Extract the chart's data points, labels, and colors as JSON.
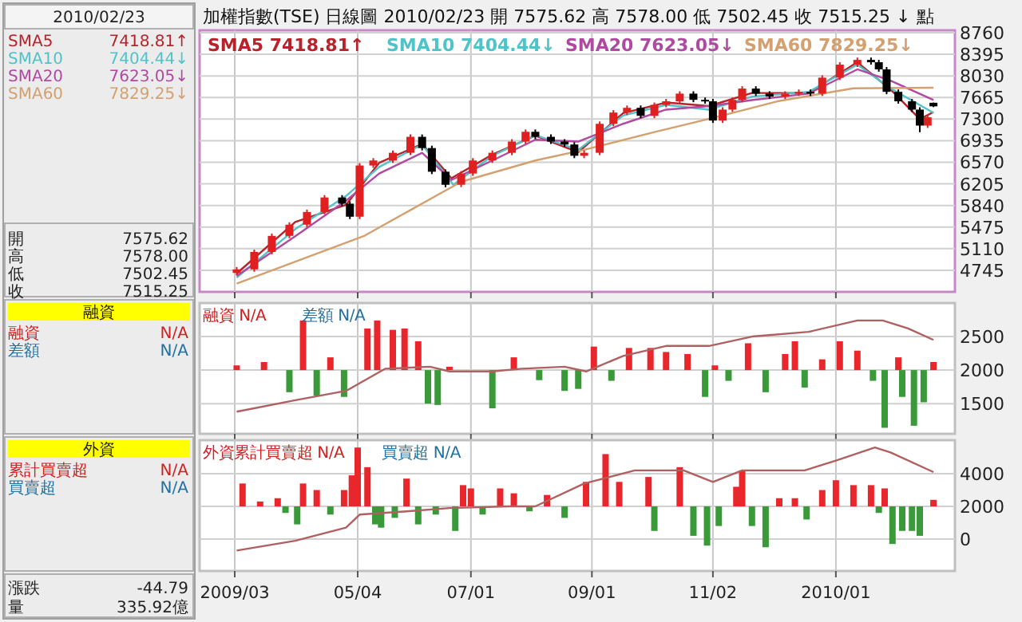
{
  "chart_data": [
    {
      "type": "candlestick",
      "title": "加權指數(TSE) 日線圖 2010/02/23 開 7575.62 高 7578.00 低 7502.45 收 7515.25 ↓ 點",
      "tick_labels": "y",
      "grid": true,
      "legend": "top left",
      "xlim": [
        "2009-02-12",
        "2010-03-06"
      ],
      "xticks": [
        {
          "value": "2009-03-02",
          "label": null
        },
        {
          "value": "2009-05-04",
          "label": null
        },
        {
          "value": "2009-07-01",
          "label": null
        },
        {
          "value": "2009-09-01",
          "label": null
        },
        {
          "value": "2009-11-02",
          "label": null
        },
        {
          "value": "2010-01-04",
          "label": null
        }
      ],
      "ylim": [
        4380,
        8800
      ],
      "yticks": [
        4745,
        5110,
        5475,
        5840,
        6205,
        6570,
        6935,
        7300,
        7665,
        8030,
        8395,
        8760
      ],
      "x": [
        "2009-03-03",
        "2009-03-12",
        "2009-03-21",
        "2009-03-30",
        "2009-04-08",
        "2009-04-17",
        "2009-04-26",
        "2009-04-30",
        "2009-05-05",
        "2009-05-12",
        "2009-05-22",
        "2009-05-31",
        "2009-06-06",
        "2009-06-11",
        "2009-06-18",
        "2009-06-26",
        "2009-07-02",
        "2009-07-12",
        "2009-07-22",
        "2009-07-29",
        "2009-08-03",
        "2009-08-11",
        "2009-08-18",
        "2009-08-23",
        "2009-08-28",
        "2009-09-05",
        "2009-09-12",
        "2009-09-19",
        "2009-09-26",
        "2009-10-03",
        "2009-10-09",
        "2009-10-16",
        "2009-10-23",
        "2009-10-29",
        "2009-11-02",
        "2009-11-07",
        "2009-11-12",
        "2009-11-17",
        "2009-11-24",
        "2009-12-01",
        "2009-12-09",
        "2009-12-16",
        "2009-12-22",
        "2009-12-28",
        "2010-01-06",
        "2010-01-15",
        "2010-01-22",
        "2010-01-26",
        "2010-01-30",
        "2010-02-05",
        "2010-02-12",
        "2010-02-16",
        "2010-02-20",
        "2010-02-23"
      ],
      "ohlc": [
        [
          4700,
          4800,
          4660,
          4760
        ],
        [
          4760,
          5095,
          4720,
          5055
        ],
        [
          5055,
          5366,
          5015,
          5326
        ],
        [
          5326,
          5555,
          5286,
          5515
        ],
        [
          5515,
          5770,
          5475,
          5730
        ],
        [
          5730,
          6015,
          5690,
          5975
        ],
        [
          5975,
          6015,
          5830,
          5870
        ],
        [
          5870,
          5910,
          5610,
          5650
        ],
        [
          5650,
          6555,
          5610,
          6515
        ],
        [
          6515,
          6640,
          6475,
          6600
        ],
        [
          6600,
          6770,
          6560,
          6730
        ],
        [
          6730,
          7040,
          6690,
          7000
        ],
        [
          7000,
          7040,
          6770,
          6810
        ],
        [
          6810,
          6850,
          6370,
          6410
        ],
        [
          6410,
          6450,
          6150,
          6190
        ],
        [
          6190,
          6420,
          6150,
          6380
        ],
        [
          6380,
          6640,
          6340,
          6600
        ],
        [
          6600,
          6770,
          6560,
          6730
        ],
        [
          6730,
          6960,
          6690,
          6920
        ],
        [
          6920,
          7125,
          6880,
          7085
        ],
        [
          7085,
          7125,
          6960,
          7000
        ],
        [
          7000,
          7040,
          6880,
          6920
        ],
        [
          6920,
          6960,
          6830,
          6870
        ],
        [
          6870,
          6910,
          6640,
          6680
        ],
        [
          6680,
          6770,
          6640,
          6730
        ],
        [
          6730,
          7260,
          6690,
          7220
        ],
        [
          7220,
          7450,
          7180,
          7410
        ],
        [
          7410,
          7530,
          7370,
          7490
        ],
        [
          7490,
          7530,
          7315,
          7355
        ],
        [
          7355,
          7580,
          7315,
          7540
        ],
        [
          7540,
          7640,
          7500,
          7600
        ],
        [
          7600,
          7770,
          7560,
          7730
        ],
        [
          7730,
          7770,
          7585,
          7625
        ],
        [
          7625,
          7665,
          7560,
          7600
        ],
        [
          7600,
          7640,
          7235,
          7275
        ],
        [
          7275,
          7500,
          7235,
          7460
        ],
        [
          7460,
          7665,
          7420,
          7625
        ],
        [
          7625,
          7855,
          7585,
          7815
        ],
        [
          7815,
          7855,
          7690,
          7730
        ],
        [
          7730,
          7770,
          7640,
          7680
        ],
        [
          7680,
          7770,
          7640,
          7730
        ],
        [
          7730,
          7800,
          7690,
          7760
        ],
        [
          7760,
          7800,
          7690,
          7730
        ],
        [
          7730,
          8040,
          7690,
          8000
        ],
        [
          8000,
          8260,
          7960,
          8220
        ],
        [
          8220,
          8340,
          8180,
          8300
        ],
        [
          8300,
          8340,
          8220,
          8260
        ],
        [
          8260,
          8300,
          8100,
          8140
        ],
        [
          8140,
          8180,
          7720,
          7760
        ],
        [
          7760,
          7800,
          7560,
          7600
        ],
        [
          7600,
          7640,
          7420,
          7460
        ],
        [
          7460,
          7500,
          7080,
          7190
        ],
        [
          7190,
          7370,
          7150,
          7330
        ],
        [
          7575.62,
          7578.0,
          7502.45,
          7515.25
        ]
      ],
      "series": [
        {
          "type": "line",
          "name": "SMA5 7418.81↑",
          "color": "#b8232b",
          "x": [
            "2009-03-03",
            "2009-04-02",
            "2009-04-28",
            "2009-05-15",
            "2009-06-06",
            "2009-06-21",
            "2009-07-12",
            "2009-08-03",
            "2009-08-25",
            "2009-09-17",
            "2009-10-09",
            "2009-10-31",
            "2009-11-22",
            "2009-12-21",
            "2010-01-15",
            "2010-02-01",
            "2010-02-16",
            "2010-02-23"
          ],
          "values": [
            4690,
            5560,
            5850,
            6560,
            6880,
            6300,
            6700,
            7020,
            6740,
            7400,
            7580,
            7520,
            7740,
            7740,
            8260,
            7800,
            7300,
            7418.81
          ]
        },
        {
          "type": "line",
          "name": "SMA10 7404.44↓",
          "color": "#4fc3c8",
          "x": [
            "2009-03-03",
            "2009-04-02",
            "2009-04-28",
            "2009-05-15",
            "2009-06-06",
            "2009-06-22",
            "2009-07-12",
            "2009-08-03",
            "2009-08-25",
            "2009-09-17",
            "2009-10-09",
            "2009-10-31",
            "2009-11-22",
            "2009-12-21",
            "2010-01-15",
            "2010-02-01",
            "2010-02-23"
          ],
          "values": [
            4620,
            5440,
            6000,
            6490,
            6870,
            6190,
            6680,
            7030,
            6780,
            7360,
            7540,
            7460,
            7680,
            7760,
            8220,
            7820,
            7404.44
          ]
        },
        {
          "type": "line",
          "name": "SMA20 7623.05↓",
          "color": "#b04aa0",
          "x": [
            "2009-03-03",
            "2009-04-02",
            "2009-04-28",
            "2009-05-15",
            "2009-06-06",
            "2009-06-21",
            "2009-07-12",
            "2009-08-03",
            "2009-08-25",
            "2009-09-17",
            "2009-10-09",
            "2009-10-31",
            "2009-11-22",
            "2009-12-21",
            "2010-01-15",
            "2010-02-01",
            "2010-02-23"
          ],
          "values": [
            4650,
            5320,
            5920,
            6380,
            6730,
            6270,
            6600,
            6950,
            6920,
            7220,
            7460,
            7520,
            7620,
            7730,
            8140,
            7950,
            7623.05
          ]
        },
        {
          "type": "line",
          "name": "SMA60 7829.25↓",
          "color": "#d4a070",
          "x": [
            "2009-03-03",
            "2009-05-07",
            "2009-06-01",
            "2009-06-26",
            "2009-08-03",
            "2009-08-28",
            "2009-10-03",
            "2009-11-02",
            "2009-12-05",
            "2010-01-13",
            "2010-02-23"
          ],
          "values": [
            4520,
            5320,
            5780,
            6240,
            6600,
            6780,
            7080,
            7320,
            7600,
            7820,
            7829.25
          ]
        }
      ]
    },
    {
      "type": "bar",
      "tick_labels": "y",
      "grid": true,
      "annotations": [
        "融資 N/A",
        "差額 N/A"
      ],
      "xlim": [
        "2009-02-12",
        "2010-03-06"
      ],
      "xticks": [
        {
          "value": "2009-03-02",
          "label": null
        },
        {
          "value": "2009-05-04",
          "label": null
        },
        {
          "value": "2009-07-01",
          "label": null
        },
        {
          "value": "2009-09-01",
          "label": null
        },
        {
          "value": "2009-11-02",
          "label": null
        },
        {
          "value": "2010-01-04",
          "label": null
        }
      ],
      "ylim": [
        1050,
        3000
      ],
      "yticks": [
        1500,
        2000,
        2500
      ],
      "series": [
        {
          "type": "bar",
          "x": [
            "2009-03-03",
            "2009-03-17",
            "2009-03-30",
            "2009-04-06",
            "2009-04-13",
            "2009-04-20",
            "2009-04-27",
            "2009-05-09",
            "2009-05-14",
            "2009-05-22",
            "2009-05-28",
            "2009-06-04",
            "2009-06-09",
            "2009-06-14",
            "2009-06-20",
            "2009-07-12",
            "2009-07-23",
            "2009-08-05",
            "2009-08-18",
            "2009-08-25",
            "2009-09-02",
            "2009-09-11",
            "2009-09-20",
            "2009-10-01",
            "2009-10-09",
            "2009-10-20",
            "2009-10-29",
            "2009-11-03",
            "2009-11-10",
            "2009-11-20",
            "2009-11-29",
            "2009-12-09",
            "2009-12-14",
            "2009-12-19",
            "2009-12-28",
            "2010-01-06",
            "2010-01-15",
            "2010-01-23",
            "2010-01-29",
            "2010-02-05",
            "2010-02-07",
            "2010-02-13",
            "2010-02-18",
            "2010-02-23"
          ],
          "values": [
            70,
            120,
            -330,
            740,
            -380,
            190,
            -400,
            620,
            740,
            600,
            620,
            430,
            -500,
            -520,
            50,
            -570,
            190,
            -150,
            -310,
            -280,
            350,
            -160,
            330,
            330,
            270,
            240,
            -400,
            70,
            -160,
            400,
            -330,
            240,
            430,
            -260,
            160,
            430,
            290,
            -160,
            -860,
            190,
            -400,
            -830,
            -480,
            120
          ],
          "base": [
            2000,
            2000,
            2000,
            2000,
            2000,
            2000,
            2000,
            2000,
            2000,
            2000,
            2000,
            2000,
            2000,
            2000,
            2000,
            2000,
            2000,
            2000,
            2000,
            2000,
            2000,
            2000,
            2000,
            2000,
            2000,
            2000,
            2000,
            2000,
            2000,
            2000,
            2000,
            2000,
            2000,
            2000,
            2000,
            2000,
            2000,
            2000,
            2000,
            2000,
            2000,
            2000,
            2000,
            2000
          ],
          "colors": [
            "#e8262b",
            "#e8262b",
            "#3a9a3a",
            "#e8262b",
            "#3a9a3a",
            "#e8262b",
            "#3a9a3a",
            "#e8262b",
            "#e8262b",
            "#e8262b",
            "#e8262b",
            "#e8262b",
            "#3a9a3a",
            "#3a9a3a",
            "#e8262b",
            "#3a9a3a",
            "#e8262b",
            "#3a9a3a",
            "#3a9a3a",
            "#3a9a3a",
            "#e8262b",
            "#3a9a3a",
            "#e8262b",
            "#e8262b",
            "#e8262b",
            "#e8262b",
            "#3a9a3a",
            "#e8262b",
            "#3a9a3a",
            "#e8262b",
            "#3a9a3a",
            "#e8262b",
            "#e8262b",
            "#3a9a3a",
            "#e8262b",
            "#e8262b",
            "#e8262b",
            "#3a9a3a",
            "#3a9a3a",
            "#e8262b",
            "#3a9a3a",
            "#3a9a3a",
            "#3a9a3a",
            "#e8262b"
          ]
        },
        {
          "type": "line",
          "color": "#b06060",
          "x": [
            "2009-03-03",
            "2009-04-02",
            "2009-04-28",
            "2009-05-18",
            "2009-06-10",
            "2009-06-20",
            "2009-07-12",
            "2009-07-27",
            "2009-08-18",
            "2009-08-29",
            "2009-09-17",
            "2009-10-09",
            "2009-10-31",
            "2009-11-22",
            "2009-12-21",
            "2010-01-15",
            "2010-01-28",
            "2010-02-10",
            "2010-02-23"
          ],
          "values": [
            1380,
            1550,
            1690,
            2020,
            2050,
            1980,
            1980,
            2020,
            2050,
            1980,
            2210,
            2360,
            2360,
            2500,
            2570,
            2740,
            2740,
            2620,
            2450
          ]
        }
      ]
    },
    {
      "type": "bar",
      "grid": true,
      "annotations": [
        "外資累計買賣超 N/A",
        "買賣超 N/A"
      ],
      "xlim": [
        "2009-02-12",
        "2010-03-06"
      ],
      "xticks": [
        {
          "value": "2009-03-02",
          "label": "2009/03"
        },
        {
          "value": "2009-05-04",
          "label": "05/04"
        },
        {
          "value": "2009-07-01",
          "label": "07/01"
        },
        {
          "value": "2009-09-01",
          "label": "09/01"
        },
        {
          "value": "2009-11-02",
          "label": "11/02"
        },
        {
          "value": "2010-01-04",
          "label": "2010/01"
        }
      ],
      "ylim": [
        -1950,
        6050
      ],
      "yticks": [
        0,
        2000,
        4000
      ],
      "series": [
        {
          "type": "bar",
          "x": [
            "2009-03-06",
            "2009-03-15",
            "2009-03-24",
            "2009-03-28",
            "2009-04-03",
            "2009-04-06",
            "2009-04-13",
            "2009-04-20",
            "2009-04-27",
            "2009-05-01",
            "2009-05-04",
            "2009-05-09",
            "2009-05-13",
            "2009-05-16",
            "2009-05-23",
            "2009-05-29",
            "2009-06-04",
            "2009-06-13",
            "2009-06-23",
            "2009-06-27",
            "2009-07-01",
            "2009-07-07",
            "2009-07-16",
            "2009-07-23",
            "2009-07-31",
            "2009-08-09",
            "2009-08-18",
            "2009-08-29",
            "2009-09-08",
            "2009-09-15",
            "2009-09-30",
            "2009-10-03",
            "2009-10-16",
            "2009-10-23",
            "2009-10-30",
            "2009-11-05",
            "2009-11-14",
            "2009-11-17",
            "2009-11-22",
            "2009-11-29",
            "2009-12-06",
            "2009-12-14",
            "2009-12-20",
            "2009-12-28",
            "2010-01-04",
            "2010-01-13",
            "2010-01-22",
            "2010-01-26",
            "2010-01-29",
            "2010-02-02",
            "2010-02-07",
            "2010-02-12",
            "2010-02-16",
            "2010-02-23"
          ],
          "values": [
            1400,
            300,
            500,
            -400,
            -1100,
            1400,
            1000,
            -500,
            1000,
            1900,
            3600,
            2400,
            -1100,
            -1300,
            -700,
            1700,
            -1100,
            -500,
            -1500,
            1300,
            1100,
            -500,
            1100,
            800,
            -300,
            700,
            -700,
            1500,
            3200,
            1500,
            1800,
            -1500,
            2400,
            -1800,
            -2400,
            -1200,
            1200,
            2200,
            -1200,
            -2500,
            500,
            500,
            -800,
            1000,
            1600,
            1300,
            1300,
            -400,
            1100,
            -2300,
            -1500,
            -1500,
            -1800,
            400
          ],
          "base": [
            2000,
            2000,
            2000,
            2000,
            2000,
            2000,
            2000,
            2000,
            2000,
            2000,
            2000,
            2000,
            2000,
            2000,
            2000,
            2000,
            2000,
            2000,
            2000,
            2000,
            2000,
            2000,
            2000,
            2000,
            2000,
            2000,
            2000,
            2000,
            2000,
            2000,
            2000,
            2000,
            2000,
            2000,
            2000,
            2000,
            2000,
            2000,
            2000,
            2000,
            2000,
            2000,
            2000,
            2000,
            2000,
            2000,
            2000,
            2000,
            2000,
            2000,
            2000,
            2000,
            2000,
            2000
          ],
          "colors": [
            "#e8262b",
            "#e8262b",
            "#e8262b",
            "#3a9a3a",
            "#3a9a3a",
            "#e8262b",
            "#e8262b",
            "#3a9a3a",
            "#e8262b",
            "#e8262b",
            "#e8262b",
            "#e8262b",
            "#3a9a3a",
            "#3a9a3a",
            "#3a9a3a",
            "#e8262b",
            "#3a9a3a",
            "#3a9a3a",
            "#3a9a3a",
            "#e8262b",
            "#e8262b",
            "#3a9a3a",
            "#e8262b",
            "#e8262b",
            "#3a9a3a",
            "#e8262b",
            "#3a9a3a",
            "#e8262b",
            "#e8262b",
            "#e8262b",
            "#e8262b",
            "#3a9a3a",
            "#e8262b",
            "#3a9a3a",
            "#3a9a3a",
            "#3a9a3a",
            "#e8262b",
            "#e8262b",
            "#3a9a3a",
            "#3a9a3a",
            "#e8262b",
            "#e8262b",
            "#3a9a3a",
            "#e8262b",
            "#e8262b",
            "#e8262b",
            "#e8262b",
            "#3a9a3a",
            "#e8262b",
            "#3a9a3a",
            "#3a9a3a",
            "#3a9a3a",
            "#3a9a3a",
            "#e8262b"
          ]
        },
        {
          "type": "line",
          "color": "#b06060",
          "x": [
            "2009-03-03",
            "2009-04-02",
            "2009-04-28",
            "2009-05-05",
            "2009-05-29",
            "2009-06-20",
            "2009-07-20",
            "2009-08-03",
            "2009-08-28",
            "2009-09-23",
            "2009-10-18",
            "2009-11-02",
            "2009-11-17",
            "2009-12-19",
            "2010-01-04",
            "2010-01-24",
            "2010-02-01",
            "2010-02-23"
          ],
          "values": [
            -700,
            -100,
            700,
            1500,
            1700,
            1900,
            2000,
            2000,
            3400,
            4200,
            4200,
            3500,
            4200,
            4200,
            4800,
            5600,
            5300,
            4100
          ]
        }
      ]
    },
    {
      "type": "other",
      "title": "2010/02/23",
      "annotations": [
        "SMA5",
        "7418.81↑",
        "SMA10",
        "7404.44↓",
        "SMA20",
        "7623.05↓",
        "SMA60",
        "7829.25↓",
        "開",
        "7575.62",
        "高",
        "7578.00",
        "低",
        "7502.45",
        "收",
        "7515.25",
        "融資",
        "融資",
        "N/A",
        "差額",
        "N/A",
        "外資",
        "累計買賣超",
        "N/A",
        "買賣超",
        "N/A",
        "漲跌",
        "-44.79",
        "量",
        "335.92億"
      ]
    }
  ]
}
